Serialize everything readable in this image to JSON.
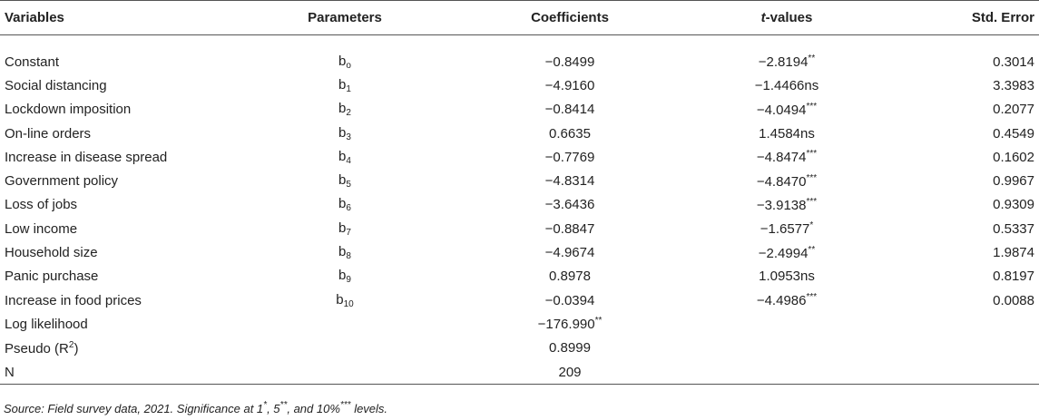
{
  "table": {
    "header": [
      "Variables",
      "Parameters",
      "Coefficients",
      [
        {
          "t": "t",
          "i": true
        },
        {
          "t": "-values"
        }
      ],
      "Std. Error"
    ],
    "rows": [
      [
        "Constant",
        [
          {
            "t": "b"
          },
          {
            "t": "o",
            "sub": true
          }
        ],
        "−0.8499",
        [
          {
            "t": "−2.8194"
          },
          {
            "t": "**",
            "sup": true
          }
        ],
        "0.3014"
      ],
      [
        "Social distancing",
        [
          {
            "t": "b"
          },
          {
            "t": "1",
            "sub": true
          }
        ],
        "−4.9160",
        "−1.4466ns",
        "3.3983"
      ],
      [
        "Lockdown imposition",
        [
          {
            "t": "b"
          },
          {
            "t": "2",
            "sub": true
          }
        ],
        "−0.8414",
        [
          {
            "t": "−4.0494"
          },
          {
            "t": "***",
            "sup": true
          }
        ],
        "0.2077"
      ],
      [
        "On-line orders",
        [
          {
            "t": "b"
          },
          {
            "t": "3",
            "sub": true
          }
        ],
        "0.6635",
        "1.4584ns",
        "0.4549"
      ],
      [
        "Increase in disease spread",
        [
          {
            "t": "b"
          },
          {
            "t": "4",
            "sub": true
          }
        ],
        "−0.7769",
        [
          {
            "t": "−4.8474"
          },
          {
            "t": "***",
            "sup": true
          }
        ],
        "0.1602"
      ],
      [
        "Government policy",
        [
          {
            "t": "b"
          },
          {
            "t": "5",
            "sub": true
          }
        ],
        "−4.8314",
        [
          {
            "t": "−4.8470"
          },
          {
            "t": "***",
            "sup": true
          }
        ],
        "0.9967"
      ],
      [
        "Loss of jobs",
        [
          {
            "t": "b"
          },
          {
            "t": "6",
            "sub": true
          }
        ],
        "−3.6436",
        [
          {
            "t": "−3.9138"
          },
          {
            "t": "***",
            "sup": true
          }
        ],
        "0.9309"
      ],
      [
        "Low income",
        [
          {
            "t": "b"
          },
          {
            "t": "7",
            "sub": true
          }
        ],
        "−0.8847",
        [
          {
            "t": "−1.6577"
          },
          {
            "t": "*",
            "sup": true
          }
        ],
        "0.5337"
      ],
      [
        "Household size",
        [
          {
            "t": "b"
          },
          {
            "t": "8",
            "sub": true
          }
        ],
        "−4.9674",
        [
          {
            "t": "−2.4994"
          },
          {
            "t": "**",
            "sup": true
          }
        ],
        "1.9874"
      ],
      [
        "Panic purchase",
        [
          {
            "t": "b"
          },
          {
            "t": "9",
            "sub": true
          }
        ],
        "0.8978",
        "1.0953ns",
        "0.8197"
      ],
      [
        "Increase in food prices",
        [
          {
            "t": "b"
          },
          {
            "t": "10",
            "sub": true
          }
        ],
        "−0.0394",
        [
          {
            "t": "−4.4986"
          },
          {
            "t": "***",
            "sup": true
          }
        ],
        "0.0088"
      ],
      [
        "Log likelihood",
        null,
        [
          {
            "t": "−176.990"
          },
          {
            "t": "**",
            "sup": true
          }
        ],
        null,
        null
      ],
      [
        [
          {
            "t": "Pseudo (R"
          },
          {
            "t": "2",
            "sup": true
          },
          {
            "t": ")"
          }
        ],
        null,
        "0.8999",
        null,
        null
      ],
      [
        "N",
        null,
        "209",
        null,
        null
      ]
    ],
    "note": [
      {
        "t": "Source: Field survey data, 2021. Significance at 1"
      },
      {
        "t": "*",
        "sup": true
      },
      {
        "t": ", 5"
      },
      {
        "t": "**",
        "sup": true
      },
      {
        "t": ", and 10%"
      },
      {
        "t": "***",
        "sup": true
      },
      {
        "t": " levels."
      }
    ]
  }
}
